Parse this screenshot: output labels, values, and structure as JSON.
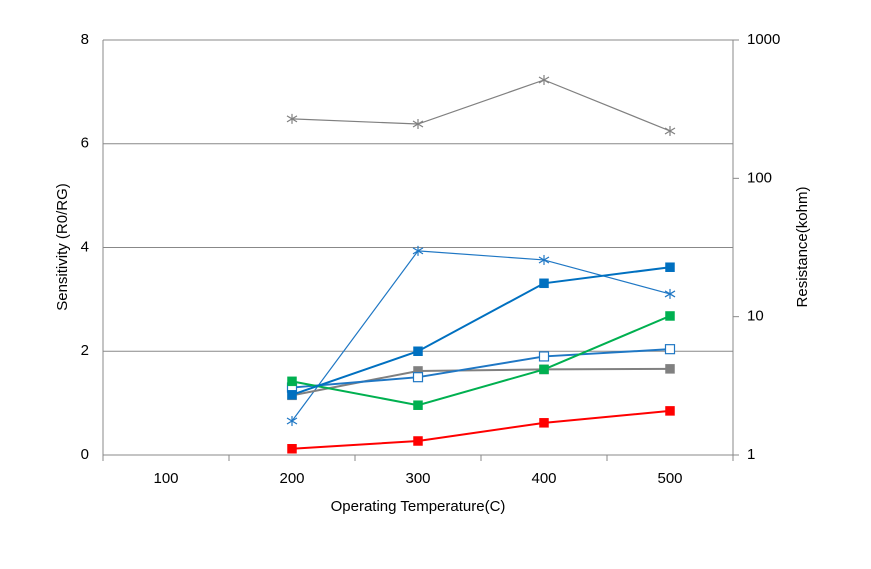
{
  "chart_data": {
    "type": "line",
    "x_label": "Operating Temperature(C)",
    "y_label": "Sensitivity (R0/RG)",
    "y2_label": "Resistance(kohm)",
    "categories": [
      "100",
      "200",
      "300",
      "400",
      "500"
    ],
    "ylim": [
      0,
      8
    ],
    "yticks": [
      0,
      2,
      4,
      6,
      8
    ],
    "y2lim": [
      1,
      1000
    ],
    "y2ticks": [
      1,
      10,
      100,
      1000
    ],
    "y2scale": "log",
    "grid": true,
    "series": [
      {
        "color": "#808080",
        "marker": "asterisk",
        "axis": "y2",
        "values": [
          null,
          269,
          247,
          514,
          220
        ]
      },
      {
        "color": "#1f77c4",
        "marker": "asterisk",
        "axis": "y2",
        "values": [
          null,
          1.76,
          29.9,
          25.7,
          14.6
        ]
      },
      {
        "color": "#808080",
        "marker": "square",
        "values": [
          null,
          1.15,
          1.62,
          1.65,
          1.66
        ]
      },
      {
        "color": "#1f77c4",
        "marker": "open-square",
        "values": [
          null,
          1.3,
          1.5,
          1.9,
          2.04
        ]
      },
      {
        "color": "#00b050",
        "marker": "square",
        "values": [
          null,
          1.42,
          0.96,
          1.65,
          2.68
        ]
      },
      {
        "color": "#0070c0",
        "marker": "square",
        "values": [
          null,
          1.16,
          2.0,
          3.31,
          3.62
        ]
      },
      {
        "color": "#ff0000",
        "marker": "square",
        "values": [
          null,
          0.12,
          0.27,
          0.62,
          0.85
        ]
      }
    ]
  }
}
